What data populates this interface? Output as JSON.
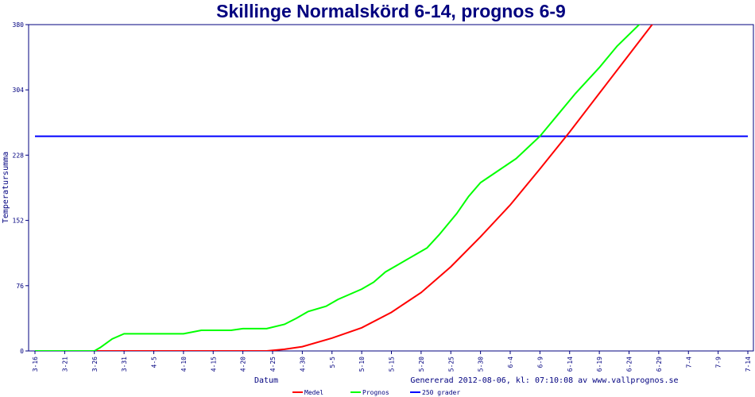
{
  "chart_data": {
    "type": "line",
    "title": "Skillinge Normalskörd 6-14, prognos 6-9",
    "xlabel": "Datum",
    "ylabel": "Temperatursumma",
    "footer": "Genererad 2012-08-06, kl: 07:10:08 av www.vallprognos.se",
    "ylim": [
      0,
      380
    ],
    "yticks": [
      "0",
      "76",
      "152",
      "228",
      "304",
      "380"
    ],
    "xticks": [
      "3-16",
      "3-21",
      "3-26",
      "3-31",
      "4-5",
      "4-10",
      "4-15",
      "4-20",
      "4-25",
      "4-30",
      "5-5",
      "5-10",
      "5-15",
      "5-20",
      "5-25",
      "5-30",
      "6-4",
      "6-9",
      "6-14",
      "6-19",
      "6-24",
      "6-29",
      "7-4",
      "7-9",
      "7-14"
    ],
    "legend_position": "bottom",
    "series": [
      {
        "name": "Medel",
        "color": "#ff0000",
        "points": [
          [
            "3-16",
            0
          ],
          [
            "4-24",
            0
          ],
          [
            "4-27",
            2
          ],
          [
            "4-30",
            5
          ],
          [
            "5-5",
            15
          ],
          [
            "5-10",
            27
          ],
          [
            "5-15",
            45
          ],
          [
            "5-20",
            68
          ],
          [
            "5-25",
            98
          ],
          [
            "5-30",
            133
          ],
          [
            "6-4",
            170
          ],
          [
            "6-9",
            212
          ],
          [
            "6-14",
            255
          ],
          [
            "6-19",
            300
          ],
          [
            "6-24",
            345
          ],
          [
            "6-29",
            390
          ]
        ]
      },
      {
        "name": "Prognos",
        "color": "#00ff00",
        "points": [
          [
            "3-16",
            0
          ],
          [
            "3-26",
            0
          ],
          [
            "3-27",
            4
          ],
          [
            "3-29",
            14
          ],
          [
            "3-31",
            20
          ],
          [
            "4-10",
            20
          ],
          [
            "4-13",
            24
          ],
          [
            "4-18",
            24
          ],
          [
            "4-20",
            26
          ],
          [
            "4-24",
            26
          ],
          [
            "4-27",
            31
          ],
          [
            "4-29",
            38
          ],
          [
            "5-1",
            46
          ],
          [
            "5-4",
            52
          ],
          [
            "5-6",
            60
          ],
          [
            "5-8",
            66
          ],
          [
            "5-10",
            72
          ],
          [
            "5-12",
            80
          ],
          [
            "5-14",
            92
          ],
          [
            "5-16",
            100
          ],
          [
            "5-18",
            108
          ],
          [
            "5-19",
            112
          ],
          [
            "5-21",
            120
          ],
          [
            "5-23",
            135
          ],
          [
            "5-26",
            160
          ],
          [
            "5-28",
            180
          ],
          [
            "5-30",
            196
          ],
          [
            "6-2",
            210
          ],
          [
            "6-5",
            224
          ],
          [
            "6-7",
            237
          ],
          [
            "6-9",
            250
          ],
          [
            "6-12",
            275
          ],
          [
            "6-15",
            300
          ],
          [
            "6-19",
            330
          ],
          [
            "6-22",
            355
          ],
          [
            "6-26",
            382
          ]
        ]
      },
      {
        "name": "250 grader",
        "color": "#0000ff",
        "points": [
          [
            "3-16",
            250
          ],
          [
            "7-14",
            250
          ]
        ]
      }
    ]
  }
}
